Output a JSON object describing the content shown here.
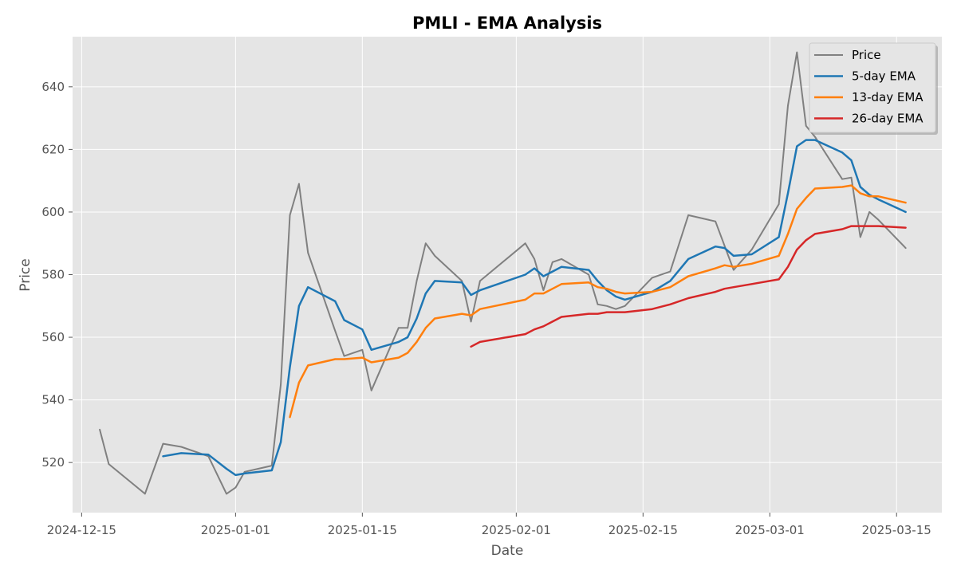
{
  "chart_data": {
    "type": "line",
    "title": "PMLI - EMA Analysis",
    "xlabel": "Date",
    "ylabel": "Price",
    "x_type": "date",
    "xlim": [
      "2024-12-14",
      "2025-03-20"
    ],
    "ylim": [
      504,
      656
    ],
    "x_ticks": [
      "2024-12-15",
      "2025-01-01",
      "2025-01-15",
      "2025-02-01",
      "2025-02-15",
      "2025-03-01",
      "2025-03-15"
    ],
    "y_ticks": [
      520,
      540,
      560,
      580,
      600,
      620,
      640
    ],
    "grid": true,
    "legend_position": "top-right",
    "colors": {
      "background": "#e5e5e5",
      "grid": "#ffffff",
      "price": "#808080",
      "ema5": "#1f77b4",
      "ema13": "#ff7f0e",
      "ema26": "#d62728"
    },
    "series": [
      {
        "name": "Price",
        "color": "#808080",
        "points": [
          [
            "2024-12-17",
            530.5
          ],
          [
            "2024-12-18",
            519.5
          ],
          [
            "2024-12-22",
            510.0
          ],
          [
            "2024-12-24",
            526.0
          ],
          [
            "2024-12-26",
            525.0
          ],
          [
            "2024-12-29",
            522.0
          ],
          [
            "2024-12-31",
            510.0
          ],
          [
            "2025-01-01",
            512.0
          ],
          [
            "2025-01-02",
            517.0
          ],
          [
            "2025-01-05",
            519.0
          ],
          [
            "2025-01-06",
            545.0
          ],
          [
            "2025-01-07",
            599.0
          ],
          [
            "2025-01-08",
            609.0
          ],
          [
            "2025-01-09",
            587.0
          ],
          [
            "2025-01-12",
            562.0
          ],
          [
            "2025-01-13",
            554.0
          ],
          [
            "2025-01-15",
            556.0
          ],
          [
            "2025-01-16",
            543.0
          ],
          [
            "2025-01-19",
            563.0
          ],
          [
            "2025-01-20",
            563.0
          ],
          [
            "2025-01-21",
            578.0
          ],
          [
            "2025-01-22",
            590.0
          ],
          [
            "2025-01-23",
            586.0
          ],
          [
            "2025-01-26",
            578.0
          ],
          [
            "2025-01-27",
            565.0
          ],
          [
            "2025-01-28",
            578.0
          ],
          [
            "2025-02-02",
            590.0
          ],
          [
            "2025-02-03",
            585.0
          ],
          [
            "2025-02-04",
            575.0
          ],
          [
            "2025-02-05",
            584.0
          ],
          [
            "2025-02-06",
            585.0
          ],
          [
            "2025-02-09",
            580.0
          ],
          [
            "2025-02-10",
            570.5
          ],
          [
            "2025-02-11",
            570.0
          ],
          [
            "2025-02-12",
            569.0
          ],
          [
            "2025-02-13",
            570.0
          ],
          [
            "2025-02-16",
            579.0
          ],
          [
            "2025-02-18",
            581.0
          ],
          [
            "2025-02-20",
            599.0
          ],
          [
            "2025-02-23",
            597.0
          ],
          [
            "2025-02-25",
            581.5
          ],
          [
            "2025-02-27",
            588.0
          ],
          [
            "2025-03-02",
            602.5
          ],
          [
            "2025-03-03",
            634.0
          ],
          [
            "2025-03-04",
            651.0
          ],
          [
            "2025-03-05",
            627.5
          ],
          [
            "2025-03-06",
            624.0
          ],
          [
            "2025-03-09",
            610.5
          ],
          [
            "2025-03-10",
            611.0
          ],
          [
            "2025-03-11",
            592.0
          ],
          [
            "2025-03-12",
            600.0
          ],
          [
            "2025-03-13",
            597.5
          ],
          [
            "2025-03-16",
            588.5
          ]
        ]
      },
      {
        "name": "5-day EMA",
        "color": "#1f77b4",
        "points": [
          [
            "2024-12-24",
            522.0
          ],
          [
            "2024-12-26",
            523.0
          ],
          [
            "2024-12-29",
            522.5
          ],
          [
            "2024-12-31",
            518.0
          ],
          [
            "2025-01-01",
            516.0
          ],
          [
            "2025-01-02",
            516.5
          ],
          [
            "2025-01-05",
            517.5
          ],
          [
            "2025-01-06",
            526.5
          ],
          [
            "2025-01-07",
            550.5
          ],
          [
            "2025-01-08",
            570.0
          ],
          [
            "2025-01-09",
            576.0
          ],
          [
            "2025-01-12",
            571.5
          ],
          [
            "2025-01-13",
            565.5
          ],
          [
            "2025-01-15",
            562.5
          ],
          [
            "2025-01-16",
            556.0
          ],
          [
            "2025-01-19",
            558.5
          ],
          [
            "2025-01-20",
            560.0
          ],
          [
            "2025-01-21",
            566.0
          ],
          [
            "2025-01-22",
            574.0
          ],
          [
            "2025-01-23",
            578.0
          ],
          [
            "2025-01-26",
            577.5
          ],
          [
            "2025-01-27",
            573.5
          ],
          [
            "2025-01-28",
            575.0
          ],
          [
            "2025-02-02",
            580.0
          ],
          [
            "2025-02-03",
            582.0
          ],
          [
            "2025-02-04",
            579.5
          ],
          [
            "2025-02-05",
            581.0
          ],
          [
            "2025-02-06",
            582.5
          ],
          [
            "2025-02-09",
            581.5
          ],
          [
            "2025-02-10",
            578.0
          ],
          [
            "2025-02-11",
            575.0
          ],
          [
            "2025-02-12",
            573.0
          ],
          [
            "2025-02-13",
            572.0
          ],
          [
            "2025-02-16",
            574.5
          ],
          [
            "2025-02-18",
            578.0
          ],
          [
            "2025-02-20",
            585.0
          ],
          [
            "2025-02-23",
            589.0
          ],
          [
            "2025-02-24",
            588.5
          ],
          [
            "2025-02-25",
            586.0
          ],
          [
            "2025-02-27",
            586.5
          ],
          [
            "2025-03-02",
            592.0
          ],
          [
            "2025-03-03",
            606.0
          ],
          [
            "2025-03-04",
            621.0
          ],
          [
            "2025-03-05",
            623.0
          ],
          [
            "2025-03-06",
            623.0
          ],
          [
            "2025-03-09",
            619.0
          ],
          [
            "2025-03-10",
            616.5
          ],
          [
            "2025-03-11",
            608.0
          ],
          [
            "2025-03-12",
            605.5
          ],
          [
            "2025-03-13",
            604.0
          ],
          [
            "2025-03-16",
            600.0
          ]
        ]
      },
      {
        "name": "13-day EMA",
        "color": "#ff7f0e",
        "points": [
          [
            "2025-01-07",
            534.5
          ],
          [
            "2025-01-08",
            545.5
          ],
          [
            "2025-01-09",
            551.0
          ],
          [
            "2025-01-12",
            553.0
          ],
          [
            "2025-01-13",
            553.0
          ],
          [
            "2025-01-15",
            553.5
          ],
          [
            "2025-01-16",
            552.0
          ],
          [
            "2025-01-19",
            553.5
          ],
          [
            "2025-01-20",
            555.0
          ],
          [
            "2025-01-21",
            558.5
          ],
          [
            "2025-01-22",
            563.0
          ],
          [
            "2025-01-23",
            566.0
          ],
          [
            "2025-01-26",
            567.5
          ],
          [
            "2025-01-27",
            567.0
          ],
          [
            "2025-01-28",
            569.0
          ],
          [
            "2025-02-02",
            572.0
          ],
          [
            "2025-02-03",
            574.0
          ],
          [
            "2025-02-04",
            574.0
          ],
          [
            "2025-02-05",
            575.5
          ],
          [
            "2025-02-06",
            577.0
          ],
          [
            "2025-02-09",
            577.5
          ],
          [
            "2025-02-10",
            576.0
          ],
          [
            "2025-02-11",
            575.5
          ],
          [
            "2025-02-12",
            574.5
          ],
          [
            "2025-02-13",
            574.0
          ],
          [
            "2025-02-16",
            574.5
          ],
          [
            "2025-02-18",
            576.0
          ],
          [
            "2025-02-20",
            579.5
          ],
          [
            "2025-02-23",
            582.0
          ],
          [
            "2025-02-24",
            583.0
          ],
          [
            "2025-02-25",
            582.5
          ],
          [
            "2025-02-27",
            583.5
          ],
          [
            "2025-03-02",
            586.0
          ],
          [
            "2025-03-03",
            593.0
          ],
          [
            "2025-03-04",
            601.0
          ],
          [
            "2025-03-05",
            604.5
          ],
          [
            "2025-03-06",
            607.5
          ],
          [
            "2025-03-09",
            608.0
          ],
          [
            "2025-03-10",
            608.5
          ],
          [
            "2025-03-11",
            606.0
          ],
          [
            "2025-03-12",
            605.0
          ],
          [
            "2025-03-13",
            605.0
          ],
          [
            "2025-03-16",
            603.0
          ]
        ]
      },
      {
        "name": "26-day EMA",
        "color": "#d62728",
        "points": [
          [
            "2025-01-27",
            557.0
          ],
          [
            "2025-01-28",
            558.5
          ],
          [
            "2025-02-02",
            561.0
          ],
          [
            "2025-02-03",
            562.5
          ],
          [
            "2025-02-04",
            563.5
          ],
          [
            "2025-02-05",
            565.0
          ],
          [
            "2025-02-06",
            566.5
          ],
          [
            "2025-02-09",
            567.5
          ],
          [
            "2025-02-10",
            567.5
          ],
          [
            "2025-02-11",
            568.0
          ],
          [
            "2025-02-12",
            568.0
          ],
          [
            "2025-02-13",
            568.0
          ],
          [
            "2025-02-16",
            569.0
          ],
          [
            "2025-02-18",
            570.5
          ],
          [
            "2025-02-20",
            572.5
          ],
          [
            "2025-02-23",
            574.5
          ],
          [
            "2025-02-24",
            575.5
          ],
          [
            "2025-02-25",
            576.0
          ],
          [
            "2025-02-27",
            577.0
          ],
          [
            "2025-03-02",
            578.5
          ],
          [
            "2025-03-03",
            582.5
          ],
          [
            "2025-03-04",
            588.0
          ],
          [
            "2025-03-05",
            591.0
          ],
          [
            "2025-03-06",
            593.0
          ],
          [
            "2025-03-09",
            594.5
          ],
          [
            "2025-03-10",
            595.5
          ],
          [
            "2025-03-11",
            595.5
          ],
          [
            "2025-03-12",
            595.5
          ],
          [
            "2025-03-13",
            595.5
          ],
          [
            "2025-03-16",
            595.0
          ]
        ]
      }
    ]
  }
}
